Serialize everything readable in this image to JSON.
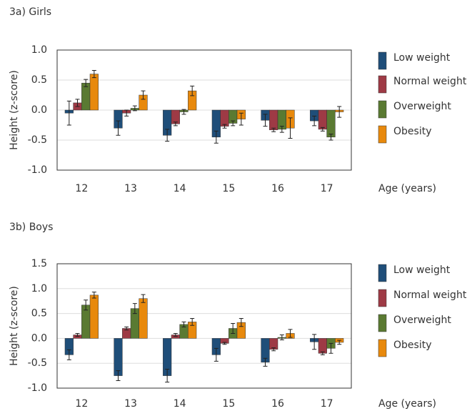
{
  "chart_data": [
    {
      "type": "bar",
      "title": "3a) Girls",
      "y_label": "Height (z-score)",
      "x_label": "Age (years)",
      "categories": [
        "12",
        "13",
        "14",
        "15",
        "16",
        "17"
      ],
      "ylim": [
        -1.0,
        1.0
      ],
      "yticks": [
        {
          "value": -1.0,
          "label": "-1.0"
        },
        -0.5,
        {
          "value": 0.0,
          "label": "0.0"
        },
        0.5,
        {
          "value": 1.0,
          "label": "1.0"
        }
      ],
      "series": [
        {
          "name": "Low weight",
          "color": "#1f4e79",
          "values": [
            -0.05,
            -0.3,
            -0.42,
            -0.45,
            -0.17,
            -0.18
          ],
          "errors": [
            0.2,
            0.12,
            0.1,
            0.1,
            0.1,
            0.08
          ]
        },
        {
          "name": "Normal weight",
          "color": "#9e3a45",
          "values": [
            0.12,
            -0.05,
            -0.23,
            -0.27,
            -0.33,
            -0.32
          ],
          "errors": [
            0.06,
            0.05,
            0.03,
            0.03,
            0.03,
            0.03
          ]
        },
        {
          "name": "Overweight",
          "color": "#5a7a32",
          "values": [
            0.45,
            0.03,
            -0.03,
            -0.22,
            -0.32,
            -0.45
          ],
          "errors": [
            0.06,
            0.04,
            0.04,
            0.04,
            0.05,
            0.05
          ]
        },
        {
          "name": "Obesity",
          "color": "#e8890c",
          "values": [
            0.6,
            0.25,
            0.32,
            -0.15,
            -0.3,
            -0.03
          ],
          "errors": [
            0.06,
            0.07,
            0.08,
            0.1,
            0.17,
            0.09
          ]
        }
      ]
    },
    {
      "type": "bar",
      "title": "3b) Boys",
      "y_label": "Height (z-score)",
      "x_label": "Age (years)",
      "categories": [
        "12",
        "13",
        "14",
        "15",
        "16",
        "17"
      ],
      "ylim": [
        -1.0,
        1.5
      ],
      "yticks": [
        {
          "value": -1.0,
          "label": "-1.0"
        },
        -0.5,
        {
          "value": 0.0,
          "label": "0.0"
        },
        0.5,
        {
          "value": 1.0,
          "label": "1.0"
        },
        1.5
      ],
      "series": [
        {
          "name": "Low weight",
          "color": "#1f4e79",
          "values": [
            -0.33,
            -0.75,
            -0.75,
            -0.33,
            -0.48,
            -0.07
          ],
          "errors": [
            0.1,
            0.1,
            0.13,
            0.13,
            0.08,
            0.15
          ]
        },
        {
          "name": "Normal weight",
          "color": "#9e3a45",
          "values": [
            0.07,
            0.2,
            0.07,
            -0.1,
            -0.22,
            -0.3
          ],
          "errors": [
            0.03,
            0.03,
            0.03,
            0.02,
            0.03,
            0.03
          ]
        },
        {
          "name": "Overweight",
          "color": "#5a7a32",
          "values": [
            0.67,
            0.6,
            0.28,
            0.2,
            0.02,
            -0.2
          ],
          "errors": [
            0.1,
            0.1,
            0.05,
            0.1,
            0.05,
            0.1
          ]
        },
        {
          "name": "Obesity",
          "color": "#e8890c",
          "values": [
            0.87,
            0.8,
            0.33,
            0.32,
            0.1,
            -0.08
          ],
          "errors": [
            0.06,
            0.08,
            0.07,
            0.08,
            0.08,
            0.04
          ]
        }
      ]
    }
  ]
}
